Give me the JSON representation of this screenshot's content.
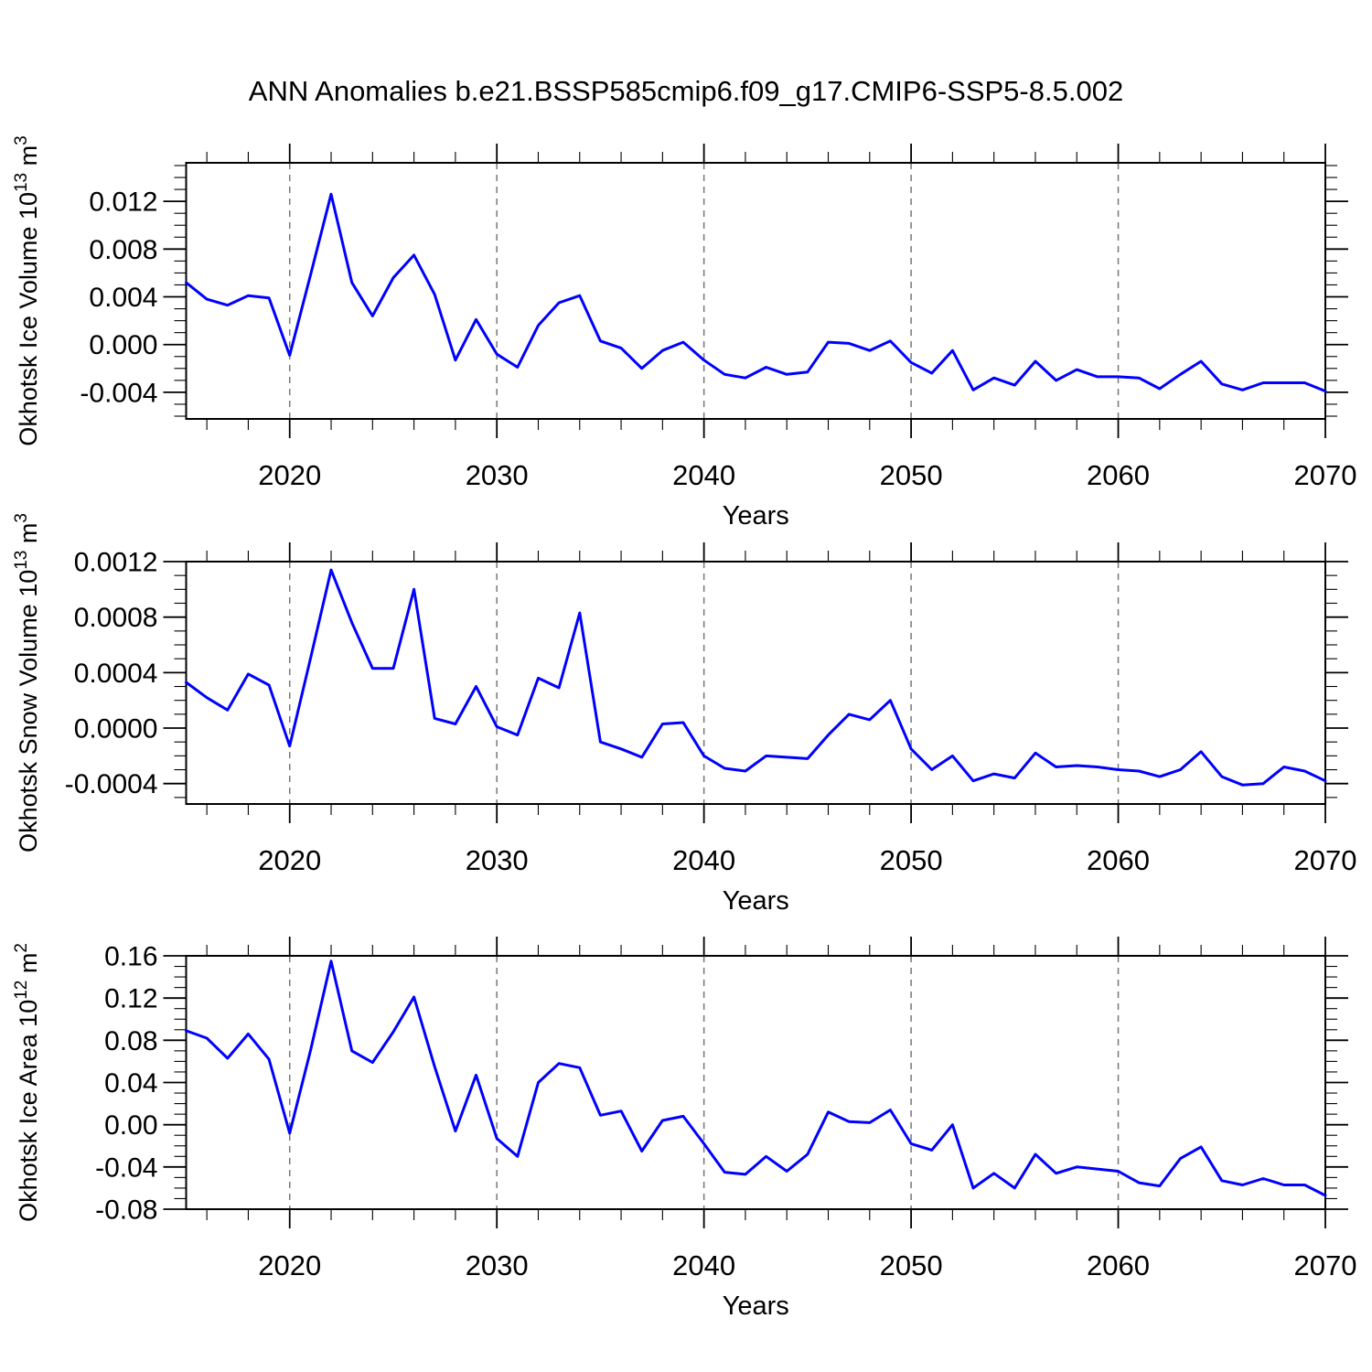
{
  "title": "ANN Anomalies b.e21.BSSP585cmip6.f09_g17.CMIP6-SSP5-8.5.002",
  "chart_data": [
    {
      "type": "line",
      "id": "ice-volume",
      "ylabel": "Okhotsk Ice Volume 10¹³ m³",
      "ylabel_parts": [
        {
          "t": "Okhotsk Ice Volume 10"
        },
        {
          "s": "13"
        },
        {
          "t": " m"
        },
        {
          "s": "3"
        }
      ],
      "xlabel": "Years",
      "line_color": "#0000ff",
      "xlim": [
        2015,
        2070
      ],
      "ylim": [
        -0.00623,
        0.01523
      ],
      "xtick_values": [
        2020,
        2030,
        2040,
        2050,
        2060,
        2070
      ],
      "xtick_labels": [
        "2020",
        "2030",
        "2040",
        "2050",
        "2060",
        "2070"
      ],
      "xminor_step": 2,
      "grid_years": [
        2020,
        2030,
        2040,
        2050,
        2060
      ],
      "ytick_values": [
        -0.004,
        0.0,
        0.004,
        0.008,
        0.012
      ],
      "ytick_labels": [
        "-0.004",
        "0.000",
        "0.004",
        "0.008",
        "0.012"
      ],
      "yminor_step": 0.001,
      "ymajor_step": 0.004,
      "x": [
        2015,
        2016,
        2017,
        2018,
        2019,
        2020,
        2021,
        2022,
        2023,
        2024,
        2025,
        2026,
        2027,
        2028,
        2029,
        2030,
        2031,
        2032,
        2033,
        2034,
        2035,
        2036,
        2037,
        2038,
        2039,
        2040,
        2041,
        2042,
        2043,
        2044,
        2045,
        2046,
        2047,
        2048,
        2049,
        2050,
        2051,
        2052,
        2053,
        2054,
        2055,
        2056,
        2057,
        2058,
        2059,
        2060,
        2061,
        2062,
        2063,
        2064,
        2065,
        2066,
        2067,
        2068,
        2069,
        2070
      ],
      "values": [
        0.0052,
        0.0038,
        0.0033,
        0.0041,
        0.0039,
        -0.0009,
        0.0058,
        0.0126,
        0.0052,
        0.0024,
        0.0056,
        0.0075,
        0.0042,
        -0.0013,
        0.0021,
        -0.0008,
        -0.0019,
        0.0016,
        0.0035,
        0.0041,
        0.0003,
        -0.0003,
        -0.002,
        -0.0005,
        0.0002,
        -0.0013,
        -0.0025,
        -0.0028,
        -0.0019,
        -0.0025,
        -0.0023,
        0.0002,
        0.0001,
        -0.0005,
        0.0003,
        -0.0015,
        -0.0024,
        -0.0005,
        -0.0038,
        -0.0028,
        -0.0034,
        -0.0014,
        -0.003,
        -0.0021,
        -0.0027,
        -0.0027,
        -0.0028,
        -0.0037,
        -0.0025,
        -0.0014,
        -0.0033,
        -0.0038,
        -0.0032,
        -0.0032,
        -0.0032,
        -0.0039
      ]
    },
    {
      "type": "line",
      "id": "snow-volume",
      "ylabel": "Okhotsk Snow Volume 10¹³ m³",
      "ylabel_parts": [
        {
          "t": "Okhotsk Snow Volume 10"
        },
        {
          "s": "13"
        },
        {
          "t": " m"
        },
        {
          "s": "3"
        }
      ],
      "xlabel": "Years",
      "line_color": "#0000ff",
      "xlim": [
        2015,
        2070
      ],
      "ylim": [
        -0.000547,
        0.0012
      ],
      "xtick_values": [
        2020,
        2030,
        2040,
        2050,
        2060,
        2070
      ],
      "xtick_labels": [
        "2020",
        "2030",
        "2040",
        "2050",
        "2060",
        "2070"
      ],
      "xminor_step": 2,
      "grid_years": [
        2020,
        2030,
        2040,
        2050,
        2060
      ],
      "ytick_values": [
        -0.0004,
        0.0,
        0.0004,
        0.0008,
        0.0012
      ],
      "ytick_labels": [
        "-0.0004",
        "0.0000",
        "0.0004",
        "0.0008",
        "0.0012"
      ],
      "yminor_step": 0.0001,
      "ymajor_step": 0.0004,
      "x": [
        2015,
        2016,
        2017,
        2018,
        2019,
        2020,
        2021,
        2022,
        2023,
        2024,
        2025,
        2026,
        2027,
        2028,
        2029,
        2030,
        2031,
        2032,
        2033,
        2034,
        2035,
        2036,
        2037,
        2038,
        2039,
        2040,
        2041,
        2042,
        2043,
        2044,
        2045,
        2046,
        2047,
        2048,
        2049,
        2050,
        2051,
        2052,
        2053,
        2054,
        2055,
        2056,
        2057,
        2058,
        2059,
        2060,
        2061,
        2062,
        2063,
        2064,
        2065,
        2066,
        2067,
        2068,
        2069,
        2070
      ],
      "values": [
        0.00033,
        0.00022,
        0.00013,
        0.00039,
        0.00031,
        -0.00013,
        0.0005,
        0.00114,
        0.00076,
        0.00043,
        0.00043,
        0.001,
        7e-05,
        3e-05,
        0.0003,
        1e-05,
        -5e-05,
        0.00036,
        0.00029,
        0.00083,
        -0.0001,
        -0.00015,
        -0.00021,
        3e-05,
        4e-05,
        -0.0002,
        -0.00029,
        -0.00031,
        -0.0002,
        -0.00021,
        -0.00022,
        -5e-05,
        0.0001,
        6e-05,
        0.0002,
        -0.00015,
        -0.0003,
        -0.0002,
        -0.00038,
        -0.00033,
        -0.00036,
        -0.00018,
        -0.00028,
        -0.00027,
        -0.00028,
        -0.0003,
        -0.00031,
        -0.00035,
        -0.0003,
        -0.00017,
        -0.00035,
        -0.00041,
        -0.0004,
        -0.00028,
        -0.00031,
        -0.00038
      ]
    },
    {
      "type": "line",
      "id": "ice-area",
      "ylabel": "Okhotsk Ice Area 10¹² m²",
      "ylabel_parts": [
        {
          "t": "Okhotsk Ice Area 10"
        },
        {
          "s": "12"
        },
        {
          "t": " m"
        },
        {
          "s": "2"
        }
      ],
      "xlabel": "Years",
      "line_color": "#0000ff",
      "xlim": [
        2015,
        2070
      ],
      "ylim": [
        -0.08,
        0.16
      ],
      "xtick_values": [
        2020,
        2030,
        2040,
        2050,
        2060,
        2070
      ],
      "xtick_labels": [
        "2020",
        "2030",
        "2040",
        "2050",
        "2060",
        "2070"
      ],
      "xminor_step": 2,
      "grid_years": [
        2020,
        2030,
        2040,
        2050,
        2060
      ],
      "ytick_values": [
        -0.08,
        -0.04,
        0.0,
        0.04,
        0.08,
        0.12,
        0.16
      ],
      "ytick_labels": [
        "-0.08",
        "-0.04",
        "0.00",
        "0.04",
        "0.08",
        "0.12",
        "0.16"
      ],
      "yminor_step": 0.01,
      "ymajor_step": 0.04,
      "x": [
        2015,
        2016,
        2017,
        2018,
        2019,
        2020,
        2021,
        2022,
        2023,
        2024,
        2025,
        2026,
        2027,
        2028,
        2029,
        2030,
        2031,
        2032,
        2033,
        2034,
        2035,
        2036,
        2037,
        2038,
        2039,
        2040,
        2041,
        2042,
        2043,
        2044,
        2045,
        2046,
        2047,
        2048,
        2049,
        2050,
        2051,
        2052,
        2053,
        2054,
        2055,
        2056,
        2057,
        2058,
        2059,
        2060,
        2061,
        2062,
        2063,
        2064,
        2065,
        2066,
        2067,
        2068,
        2069,
        2070
      ],
      "values": [
        0.089,
        0.082,
        0.063,
        0.086,
        0.062,
        -0.008,
        0.07,
        0.155,
        0.07,
        0.059,
        0.088,
        0.121,
        0.055,
        -0.006,
        0.047,
        -0.013,
        -0.03,
        0.04,
        0.058,
        0.054,
        0.009,
        0.013,
        -0.025,
        0.004,
        0.008,
        -0.018,
        -0.045,
        -0.047,
        -0.03,
        -0.044,
        -0.028,
        0.012,
        0.003,
        0.002,
        0.014,
        -0.018,
        -0.024,
        0.0,
        -0.06,
        -0.046,
        -0.06,
        -0.028,
        -0.046,
        -0.04,
        -0.042,
        -0.044,
        -0.055,
        -0.058,
        -0.032,
        -0.021,
        -0.053,
        -0.057,
        -0.051,
        -0.057,
        -0.057,
        -0.067
      ]
    }
  ]
}
